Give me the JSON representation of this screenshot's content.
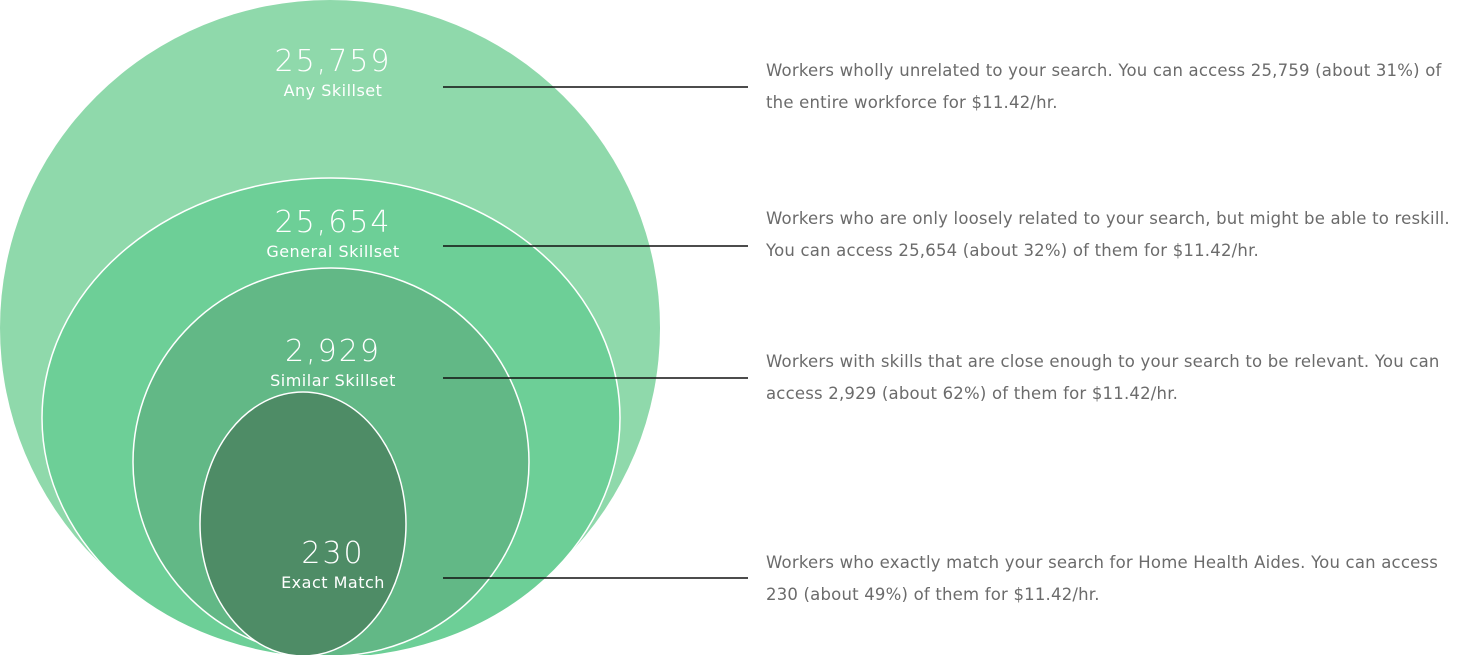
{
  "levels": [
    {
      "count": "25,759",
      "label": "Any Skillset",
      "description": "Workers wholly unrelated to your search. You can access 25,759 (about 31%) of the entire workforce for $11.42/hr."
    },
    {
      "count": "25,654",
      "label": "General Skillset",
      "description": "Workers who are only loosely related to your search, but might be able to reskill. You can access 25,654 (about 32%) of them for $11.42/hr."
    },
    {
      "count": "2,929",
      "label": "Similar Skillset",
      "description": "Workers with skills that are close enough to your search to be relevant. You can access 2,929 (about 62%) of them for $11.42/hr."
    },
    {
      "count": "230",
      "label": "Exact Match",
      "description": "Workers who exactly match your search for Home Health Aides. You can access 230 (about 49%) of them for $11.42/hr."
    }
  ]
}
